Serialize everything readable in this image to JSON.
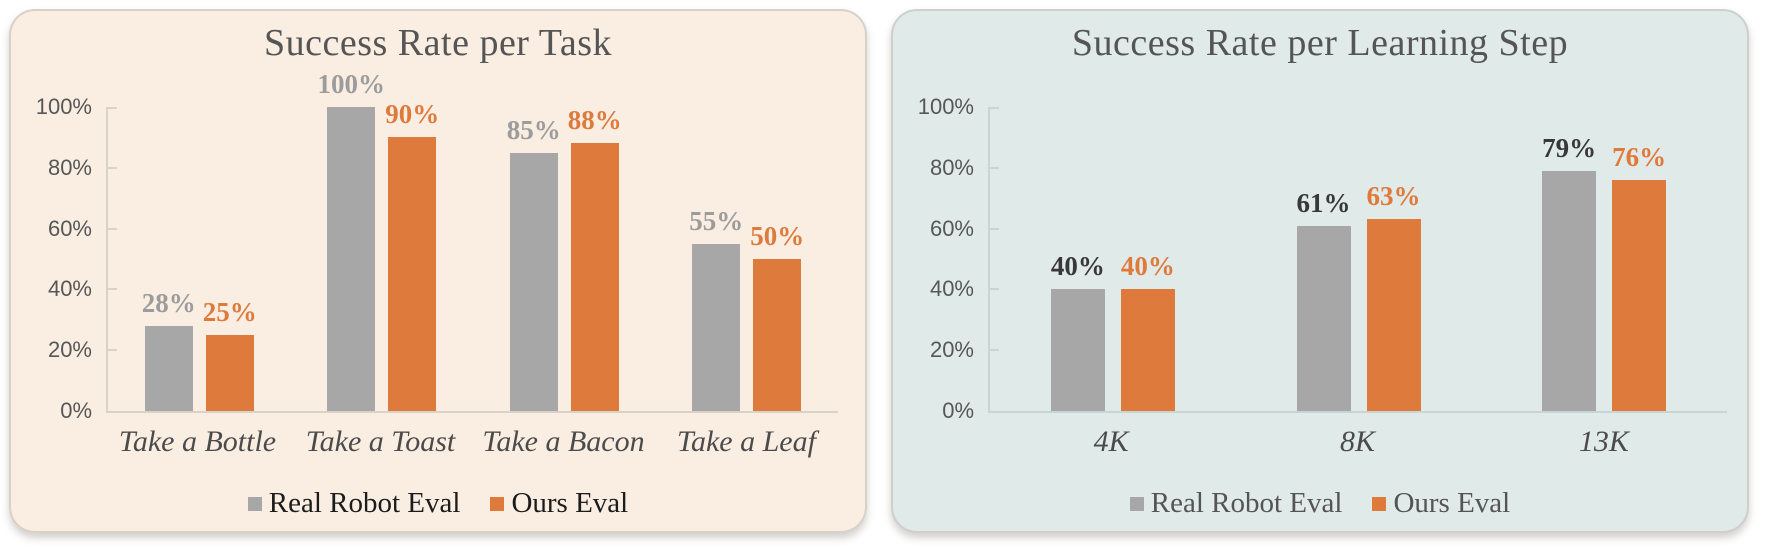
{
  "page_background": "#ffffff",
  "chart_data": [
    {
      "type": "bar",
      "title": "Success Rate per Task",
      "panel_bg": "#faeee3",
      "axis_color": "#d9d2c9",
      "title_color": "#555555",
      "categories": [
        "Take a Bottle",
        "Take a Toast",
        "Take a Bacon",
        "Take a Leaf"
      ],
      "series": [
        {
          "name": "Real Robot Eval",
          "color": "#a7a7a7",
          "label_color": "#9c9c9c",
          "values": [
            28,
            100,
            85,
            55
          ]
        },
        {
          "name": "Ours Eval",
          "color": "#de7a3c",
          "label_color": "#de7a3c",
          "values": [
            25,
            90,
            88,
            50
          ]
        }
      ],
      "ylim": [
        0,
        100
      ],
      "yticks": [
        "0%",
        "20%",
        "40%",
        "60%",
        "80%",
        "100%"
      ],
      "ytick_values": [
        0,
        20,
        40,
        60,
        80,
        100
      ],
      "grid": false,
      "legend_position": "bottom",
      "legend_text_color": "#1c1c1c",
      "data_label_suffix": "%"
    },
    {
      "type": "bar",
      "title": "Success Rate per Learning Step",
      "panel_bg": "#e0eae9",
      "axis_color": "#c9d5d3",
      "title_color": "#555555",
      "categories": [
        "4K",
        "8K",
        "13K"
      ],
      "series": [
        {
          "name": "Real Robot Eval",
          "color": "#a7a7a7",
          "label_color": "#383838",
          "values": [
            40,
            61,
            79
          ]
        },
        {
          "name": "Ours Eval",
          "color": "#de7a3c",
          "label_color": "#e0793a",
          "values": [
            40,
            63,
            76
          ]
        }
      ],
      "ylim": [
        0,
        100
      ],
      "yticks": [
        "0%",
        "20%",
        "40%",
        "60%",
        "80%",
        "100%"
      ],
      "ytick_values": [
        0,
        20,
        40,
        60,
        80,
        100
      ],
      "grid": false,
      "legend_position": "bottom",
      "legend_text_color": "#545454",
      "data_label_suffix": "%"
    }
  ]
}
